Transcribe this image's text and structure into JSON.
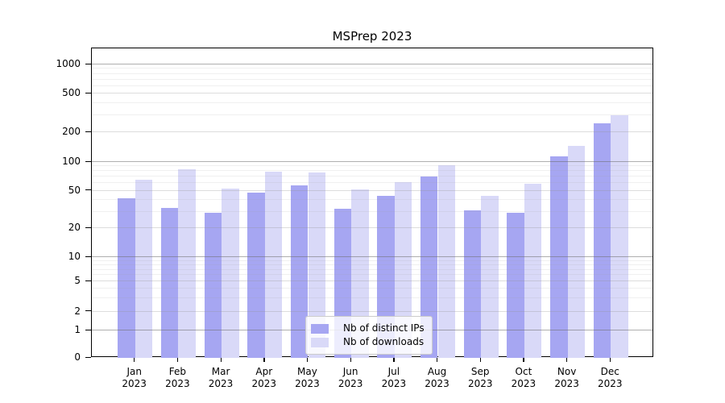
{
  "chart_data": {
    "type": "bar",
    "title": "MSPrep 2023",
    "months": [
      "Jan",
      "Feb",
      "Mar",
      "Apr",
      "May",
      "Jun",
      "Jul",
      "Aug",
      "Sep",
      "Oct",
      "Nov",
      "Dec"
    ],
    "year": "2023",
    "x_categories": [
      "Jan 2023",
      "Feb 2023",
      "Mar 2023",
      "Apr 2023",
      "May 2023",
      "Jun 2023",
      "Jul 2023",
      "Aug 2023",
      "Sep 2023",
      "Oct 2023",
      "Nov 2023",
      "Dec 2023"
    ],
    "series": [
      {
        "name": "Nb of distinct IPs",
        "color": "#a6a6f2",
        "values": [
          42,
          33,
          29,
          48,
          57,
          32,
          44,
          70,
          31,
          29,
          115,
          250
        ]
      },
      {
        "name": "Nb of downloads",
        "color": "#d9d9f8",
        "values": [
          65,
          84,
          53,
          80,
          78,
          52,
          62,
          93,
          44,
          59,
          146,
          298
        ]
      }
    ],
    "y_axis": {
      "scale": "symlog",
      "ticks": [
        0,
        1,
        2,
        5,
        10,
        20,
        50,
        100,
        200,
        500,
        1000
      ],
      "ylim": [
        0,
        1400
      ]
    },
    "grid": "on",
    "legend_position": "lower-center"
  },
  "colors": {
    "background": "#ffffff",
    "axis": "#000000",
    "grid_major": "#aaaaaa",
    "grid_mid": "#dddddd",
    "grid_minor": "#efefef"
  }
}
